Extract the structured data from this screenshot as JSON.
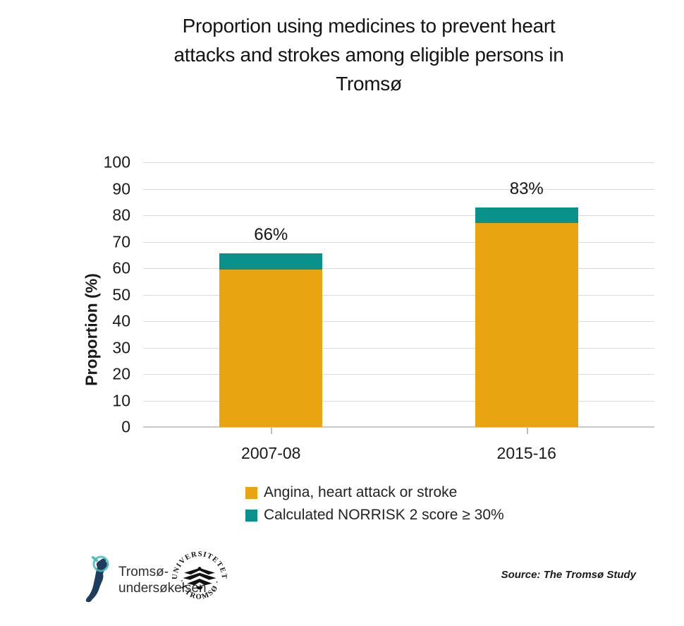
{
  "chart_data": {
    "type": "bar",
    "stacked": true,
    "title": "Proportion using medicines to prevent heart attacks and strokes among eligible persons in Tromsø",
    "title_lines": [
      "Proportion using medicines to prevent heart",
      "attacks and strokes among eligible persons in",
      "Tromsø"
    ],
    "categories": [
      "2007-08",
      "2015-16"
    ],
    "series": [
      {
        "name": "Angina, heart attack or stroke",
        "color": "#E9A412",
        "values": [
          59.5,
          77
        ]
      },
      {
        "name": "Calculated NORRISK 2 score ≥ 30%",
        "color": "#0A918B",
        "values": [
          6,
          6
        ]
      }
    ],
    "total_labels": [
      "66%",
      "83%"
    ],
    "xlabel": "",
    "ylabel": "Proportion (%)",
    "ylim": [
      0,
      100
    ],
    "ytick_step": 10,
    "grid": true,
    "legend_position": "bottom",
    "grid_color": "#DADADA",
    "axis_color": "#C9C9C9"
  },
  "footer": {
    "study_logo": {
      "icon": "norway-map-magnifier",
      "line1": "Tromsø-",
      "line2": "undersøkelsen",
      "map_color": "#1D3C5E",
      "magnifier_color": "#49B8B2"
    },
    "university_seal": {
      "icon": "uit-eagle-seal",
      "top_text": "UNIVERSITETET",
      "bottom_text": "· I TROMSØ ·",
      "color": "#111111"
    },
    "source": "Source: The Tromsø Study"
  }
}
